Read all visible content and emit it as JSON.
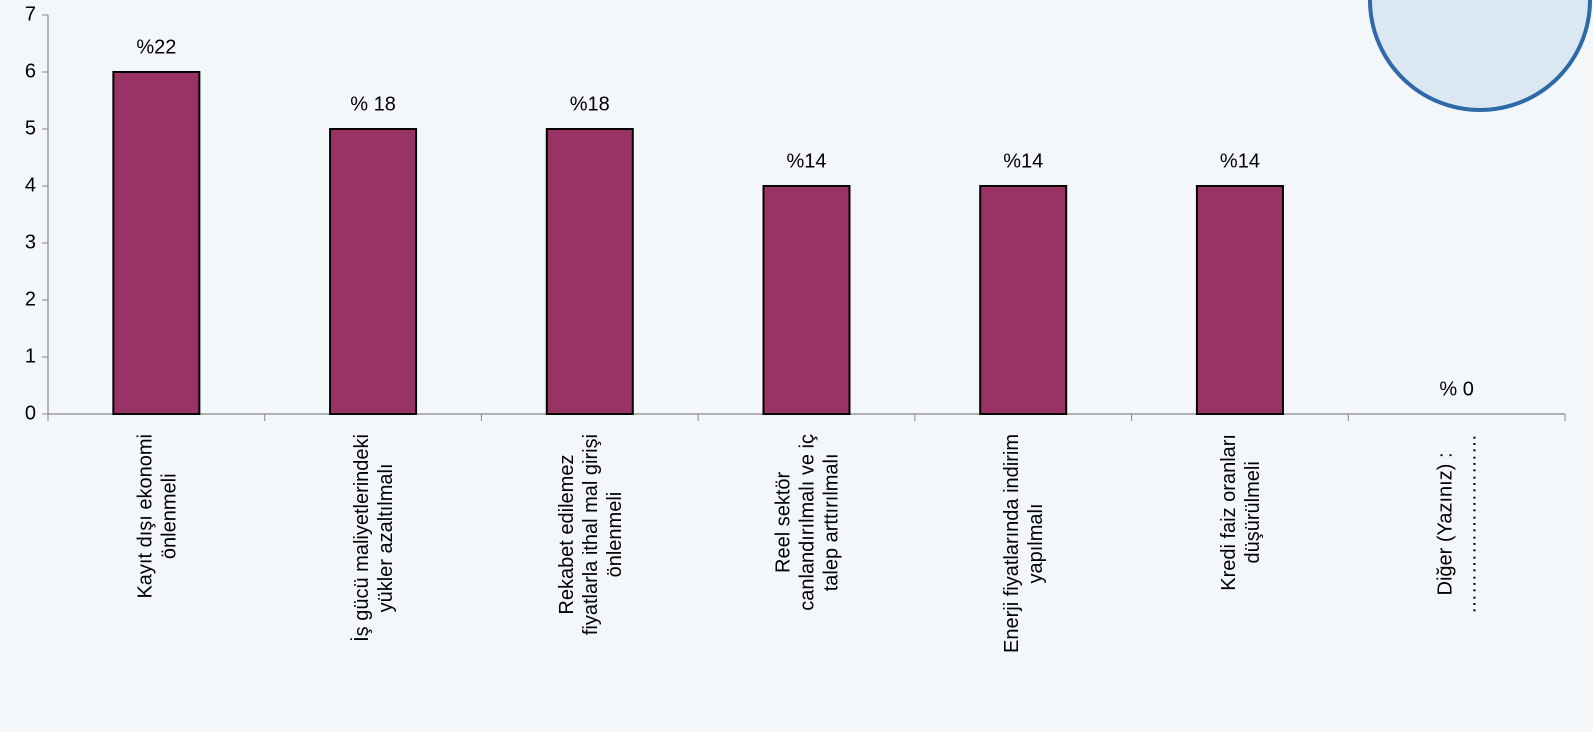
{
  "chart_data": {
    "type": "bar",
    "categories": [
      "Kayıt dışı ekonomi\nönlenmeli",
      "İş gücü maliyetlerindeki\nyükler azaltılmalı",
      "Rekabet edilemez\nfiyatlarla ithal mal girişi\nönlenmeli",
      "Reel sektör\ncanlandırılmalı  ve iç\ntalep  arttırılmalı",
      "Enerji fiyatlarında indirim\nyapılmalı",
      "Kredi faiz oranları\ndüşürülmeli",
      "Diğer (Yazınız)  :\n………………………"
    ],
    "values": [
      6,
      5,
      5,
      4,
      4,
      4,
      0
    ],
    "annotations": [
      "%22",
      "% 18",
      "%18",
      "%14",
      "%14",
      "%14",
      "% 0"
    ],
    "color": "#993366",
    "ylim": [
      0,
      7
    ],
    "yticks": [
      0,
      1,
      2,
      3,
      4,
      5,
      6,
      7
    ]
  }
}
